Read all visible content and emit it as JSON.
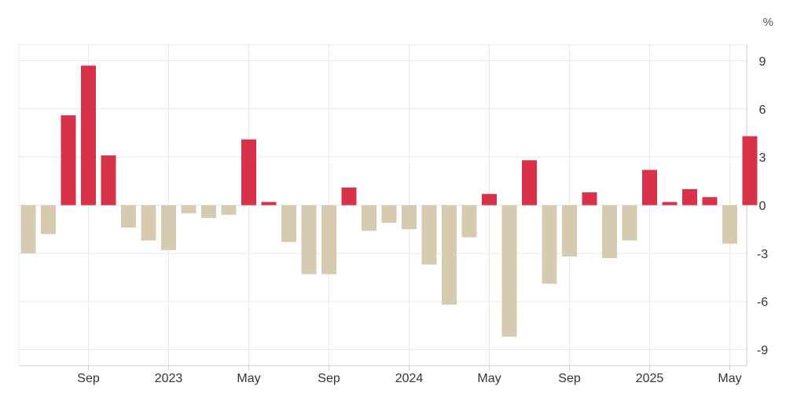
{
  "chart_data": {
    "type": "bar",
    "ylabel": "%",
    "ylim": [
      -10,
      10
    ],
    "yticks": [
      9,
      6,
      3,
      0,
      -3,
      -6,
      -9
    ],
    "grid": true,
    "categories": [
      "2022-06",
      "2022-07",
      "2022-08",
      "2022-09",
      "2022-10",
      "2022-11",
      "2022-12",
      "2023-01",
      "2023-02",
      "2023-03",
      "2023-04",
      "2023-05",
      "2023-06",
      "2023-07",
      "2023-08",
      "2023-09",
      "2023-10",
      "2023-11",
      "2023-12",
      "2024-01",
      "2024-02",
      "2024-03",
      "2024-04",
      "2024-05",
      "2024-06",
      "2024-07",
      "2024-08",
      "2024-09",
      "2024-10",
      "2024-11",
      "2024-12",
      "2025-01",
      "2025-02",
      "2025-03",
      "2025-04",
      "2025-05",
      "2025-06"
    ],
    "values": [
      -3.0,
      -1.8,
      5.6,
      8.7,
      3.1,
      -1.4,
      -2.2,
      -2.8,
      -0.5,
      -0.8,
      -0.6,
      4.1,
      0.2,
      -2.3,
      -4.3,
      -4.3,
      1.1,
      -1.6,
      -1.1,
      -1.5,
      -3.7,
      -6.2,
      -2.0,
      0.7,
      -8.2,
      2.8,
      -4.9,
      -3.2,
      0.8,
      -3.3,
      -2.2,
      2.2,
      0.2,
      1.0,
      0.5,
      -2.4,
      4.3
    ],
    "xticks": [
      {
        "category": "2022-09",
        "label": "Sep"
      },
      {
        "category": "2023-01",
        "label": "2023"
      },
      {
        "category": "2023-05",
        "label": "May"
      },
      {
        "category": "2023-09",
        "label": "Sep"
      },
      {
        "category": "2024-01",
        "label": "2024"
      },
      {
        "category": "2024-05",
        "label": "May"
      },
      {
        "category": "2024-09",
        "label": "Sep"
      },
      {
        "category": "2025-01",
        "label": "2025"
      },
      {
        "category": "2025-05",
        "label": "May"
      }
    ],
    "colors": {
      "positive": "#d8324b",
      "negative": "#d6cbb0",
      "grid": "#e9e9e9",
      "axis": "#cccccc",
      "text": "#333333"
    }
  }
}
